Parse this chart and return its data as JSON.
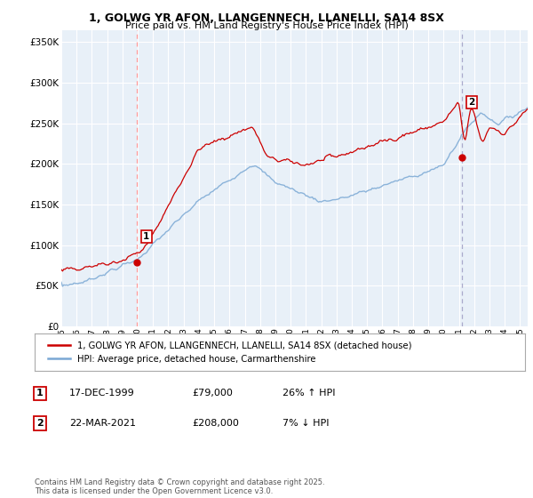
{
  "title": "1, GOLWG YR AFON, LLANGENNECH, LLANELLI, SA14 8SX",
  "subtitle": "Price paid vs. HM Land Registry's House Price Index (HPI)",
  "ylabel_ticks": [
    "£0",
    "£50K",
    "£100K",
    "£150K",
    "£200K",
    "£250K",
    "£300K",
    "£350K"
  ],
  "ytick_values": [
    0,
    50000,
    100000,
    150000,
    200000,
    250000,
    300000,
    350000
  ],
  "ylim": [
    0,
    365000
  ],
  "xlim_start": 1995.0,
  "xlim_end": 2025.5,
  "purchase1": {
    "date": "17-DEC-1999",
    "price": 79000,
    "label": "1",
    "year": 1999.96
  },
  "purchase2": {
    "date": "22-MAR-2021",
    "price": 208000,
    "label": "2",
    "year": 2021.22
  },
  "legend_line1": "1, GOLWG YR AFON, LLANGENNECH, LLANELLI, SA14 8SX (detached house)",
  "legend_line2": "HPI: Average price, detached house, Carmarthenshire",
  "table_row1": [
    "1",
    "17-DEC-1999",
    "£79,000",
    "26% ↑ HPI"
  ],
  "table_row2": [
    "2",
    "22-MAR-2021",
    "£208,000",
    "7% ↓ HPI"
  ],
  "footnote": "Contains HM Land Registry data © Crown copyright and database right 2025.\nThis data is licensed under the Open Government Licence v3.0.",
  "hpi_color": "#7aa8d4",
  "price_color": "#cc0000",
  "vline1_color": "#ff9999",
  "vline2_color": "#aaaacc",
  "chart_bg": "#e8f0f8",
  "background_color": "#ffffff",
  "grid_color": "#ffffff"
}
